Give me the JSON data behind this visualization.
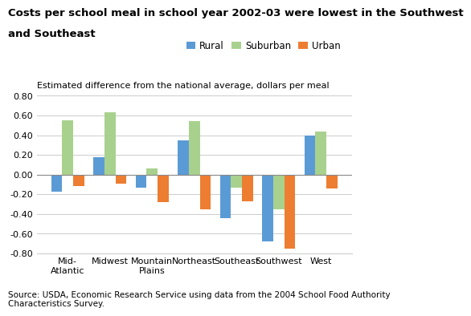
{
  "title_line1": "Costs per school meal in school year 2002-03 were lowest in the Southwest",
  "title_line2": "and Southeast",
  "ylabel": "Estimated difference from the national average, dollars per meal",
  "source": "Source: USDA, Economic Research Service using data from the 2004 School Food Authority\nCharacteristics Survey.",
  "categories": [
    "Mid-\nAtlantic",
    "Midwest",
    "Mountain\nPlains",
    "Northeast",
    "Southeast",
    "Southwest",
    "West"
  ],
  "rural": [
    -0.17,
    0.18,
    -0.13,
    0.35,
    -0.44,
    -0.68,
    0.4
  ],
  "suburban": [
    0.55,
    0.63,
    0.06,
    0.54,
    -0.13,
    -0.35,
    0.44
  ],
  "urban": [
    -0.12,
    -0.09,
    -0.28,
    -0.35,
    -0.27,
    -0.75,
    -0.14
  ],
  "rural_color": "#5b9bd5",
  "suburban_color": "#a9d18e",
  "urban_color": "#ed7d31",
  "ylim": [
    -0.8,
    0.8
  ],
  "yticks": [
    -0.8,
    -0.6,
    -0.4,
    -0.2,
    0.0,
    0.2,
    0.4,
    0.6,
    0.8
  ],
  "bar_width": 0.26,
  "title_fontsize": 9.5,
  "label_fontsize": 8,
  "tick_fontsize": 8,
  "source_fontsize": 7.5,
  "legend_fontsize": 8.5
}
